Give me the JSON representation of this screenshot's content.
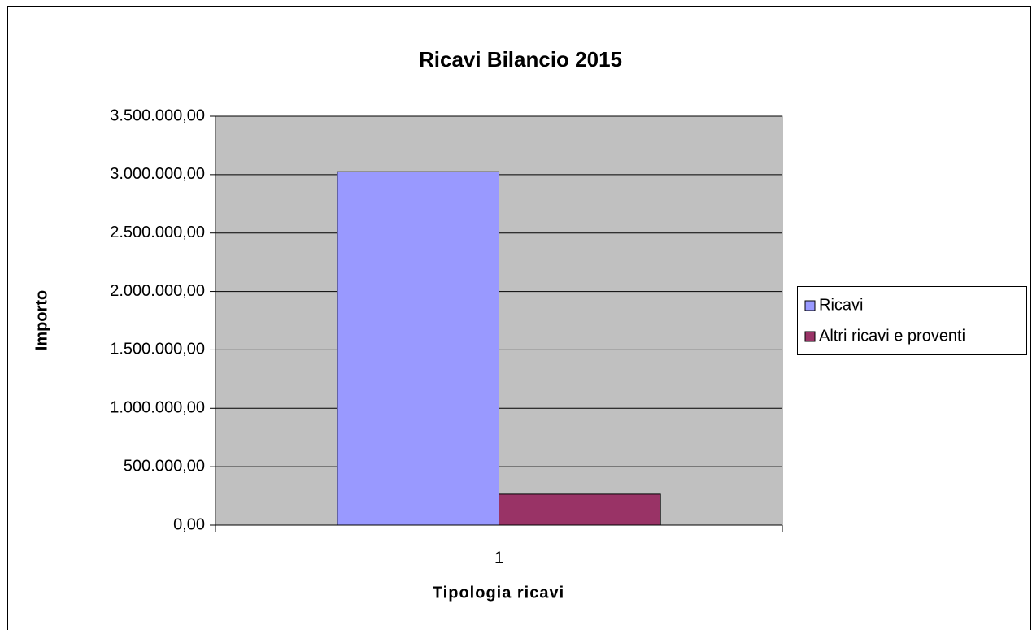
{
  "chart_data": {
    "type": "bar",
    "title": "Ricavi Bilancio 2015",
    "x_label": "Tipologia ricavi",
    "y_label": "Importo",
    "categories": [
      "1"
    ],
    "series": [
      {
        "name": "Ricavi",
        "color": "#9999ff",
        "values": [
          3025000
        ]
      },
      {
        "name": "Altri ricavi e proventi",
        "color": "#993366",
        "values": [
          265000
        ]
      }
    ],
    "ylim": [
      0,
      3500000
    ],
    "yticks": [
      {
        "value": 0,
        "label": "0,00"
      },
      {
        "value": 500000,
        "label": "500.000,00"
      },
      {
        "value": 1000000,
        "label": "1.000.000,00"
      },
      {
        "value": 1500000,
        "label": "1.500.000,00"
      },
      {
        "value": 2000000,
        "label": "2.000.000,00"
      },
      {
        "value": 2500000,
        "label": "2.500.000,00"
      },
      {
        "value": 3000000,
        "label": "3.000.000,00"
      },
      {
        "value": 3500000,
        "label": "3.500.000,00"
      }
    ],
    "grid": true,
    "legend": "right",
    "plot_background": "#c0c0c0"
  }
}
